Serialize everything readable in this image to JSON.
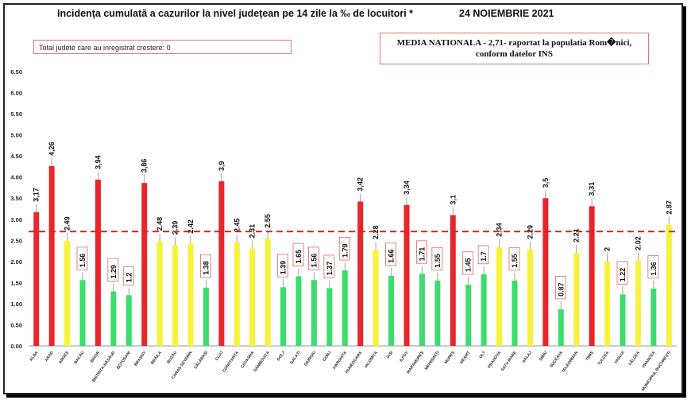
{
  "header": {
    "title": "Incidența cumulată a cazurilor la nivel județean pe 14 zile la ‰ de locuitori *",
    "date": "24 NOIEMBRIE 2021",
    "box_left": "Total judete care au inregistrat crestere: 0",
    "box_right_line1": "MEDIA NATIONALA - 2,71-  raportat la populatia Rom�nici,",
    "box_right_line2": "conform datelor INS"
  },
  "colors": {
    "red": "#e8252a",
    "yellow": "#f7f23b",
    "green": "#3ddc6e",
    "reference": "#e02020"
  },
  "chart_data": {
    "type": "bar",
    "title": "Incidența cumulată a cazurilor la nivel județean pe 14 zile la ‰ de locuitori *",
    "ylim": [
      0,
      6.5
    ],
    "yticks": [
      "0.00",
      "0.50",
      "1.00",
      "1.50",
      "2.00",
      "2.50",
      "3.00",
      "3.50",
      "4.00",
      "4.50",
      "5.00",
      "5.50",
      "6.00",
      "6.50"
    ],
    "reference_line": 2.71,
    "grid": false,
    "bars": [
      {
        "category": "ALBA",
        "value": 3.17,
        "label": "3,17",
        "color": "red",
        "boxed": false
      },
      {
        "category": "ARAD",
        "value": 4.26,
        "label": "4,26",
        "color": "red",
        "boxed": false
      },
      {
        "category": "ARGEȘ",
        "value": 2.49,
        "label": "2.49",
        "color": "yellow",
        "boxed": false
      },
      {
        "category": "BACĂU",
        "value": 1.56,
        "label": "1.56",
        "color": "green",
        "boxed": true
      },
      {
        "category": "BIHOR",
        "value": 3.94,
        "label": "3,94",
        "color": "red",
        "boxed": false
      },
      {
        "category": "BISTRIȚA-NĂSĂUD",
        "value": 1.29,
        "label": "1.29",
        "color": "green",
        "boxed": true
      },
      {
        "category": "BOTOȘANI",
        "value": 1.2,
        "label": "1.2",
        "color": "green",
        "boxed": true
      },
      {
        "category": "BRAȘOV",
        "value": 3.86,
        "label": "3,86",
        "color": "red",
        "boxed": false
      },
      {
        "category": "BRĂILA",
        "value": 2.48,
        "label": "2.48",
        "color": "yellow",
        "boxed": false
      },
      {
        "category": "BUZĂU",
        "value": 2.39,
        "label": "2.39",
        "color": "yellow",
        "boxed": false
      },
      {
        "category": "CARAȘ-SEVERIN",
        "value": 2.42,
        "label": "2.42",
        "color": "yellow",
        "boxed": false
      },
      {
        "category": "CĂLĂRAȘI",
        "value": 1.38,
        "label": "1.38",
        "color": "green",
        "boxed": true
      },
      {
        "category": "CLUJ",
        "value": 3.9,
        "label": "3,9",
        "color": "red",
        "boxed": false
      },
      {
        "category": "CONSTANȚA",
        "value": 2.45,
        "label": "2.45",
        "color": "yellow",
        "boxed": false
      },
      {
        "category": "COVASNA",
        "value": 2.31,
        "label": "2.31",
        "color": "yellow",
        "boxed": false
      },
      {
        "category": "DÂMBOVIȚA",
        "value": 2.55,
        "label": "2.55",
        "color": "yellow",
        "boxed": false
      },
      {
        "category": "DOLJ",
        "value": 1.39,
        "label": "1.39",
        "color": "green",
        "boxed": true
      },
      {
        "category": "GALAȚI",
        "value": 1.65,
        "label": "1.65",
        "color": "green",
        "boxed": true
      },
      {
        "category": "GIURGIU",
        "value": 1.56,
        "label": "1.56",
        "color": "green",
        "boxed": true
      },
      {
        "category": "GORJ",
        "value": 1.37,
        "label": "1.37",
        "color": "green",
        "boxed": true
      },
      {
        "category": "HARGHITA",
        "value": 1.79,
        "label": "1.79",
        "color": "green",
        "boxed": true
      },
      {
        "category": "HUNEDOARA",
        "value": 3.42,
        "label": "3,42",
        "color": "red",
        "boxed": false
      },
      {
        "category": "IALOMIȚA",
        "value": 2.28,
        "label": "2.28",
        "color": "yellow",
        "boxed": false
      },
      {
        "category": "IAȘI",
        "value": 1.66,
        "label": "1.66",
        "color": "green",
        "boxed": true
      },
      {
        "category": "ILFOV",
        "value": 3.34,
        "label": "3,34",
        "color": "red",
        "boxed": false
      },
      {
        "category": "MARAMUREȘ",
        "value": 1.71,
        "label": "1.71",
        "color": "green",
        "boxed": true
      },
      {
        "category": "MEHEDINȚI",
        "value": 1.55,
        "label": "1.55",
        "color": "green",
        "boxed": true
      },
      {
        "category": "MUREȘ",
        "value": 3.1,
        "label": "3,1",
        "color": "red",
        "boxed": false
      },
      {
        "category": "NEAMȚ",
        "value": 1.45,
        "label": "1.45",
        "color": "green",
        "boxed": true
      },
      {
        "category": "OLT",
        "value": 1.7,
        "label": "1.7",
        "color": "green",
        "boxed": true
      },
      {
        "category": "PRAHOVA",
        "value": 2.34,
        "label": "2.34",
        "color": "yellow",
        "boxed": false
      },
      {
        "category": "SATU MARE",
        "value": 1.55,
        "label": "1.55",
        "color": "green",
        "boxed": true
      },
      {
        "category": "SĂLAJ",
        "value": 2.29,
        "label": "2.29",
        "color": "yellow",
        "boxed": false
      },
      {
        "category": "SIBIU",
        "value": 3.5,
        "label": "3,5",
        "color": "red",
        "boxed": false
      },
      {
        "category": "SUCEAVA",
        "value": 0.87,
        "label": "0.87",
        "color": "green",
        "boxed": true
      },
      {
        "category": "TELEORMAN",
        "value": 2.21,
        "label": "2.21",
        "color": "yellow",
        "boxed": false
      },
      {
        "category": "TIMIȘ",
        "value": 3.31,
        "label": "3,31",
        "color": "red",
        "boxed": false
      },
      {
        "category": "TULCEA",
        "value": 2,
        "label": "2",
        "color": "yellow",
        "boxed": false
      },
      {
        "category": "VASLUI",
        "value": 1.22,
        "label": "1.22",
        "color": "green",
        "boxed": true
      },
      {
        "category": "VÂLCEA",
        "value": 2.02,
        "label": "2.02",
        "color": "yellow",
        "boxed": false
      },
      {
        "category": "VRANCEA",
        "value": 1.36,
        "label": "1.36",
        "color": "green",
        "boxed": true
      },
      {
        "category": "MUNICIPIUL BUCUREȘTI",
        "value": 2.87,
        "label": "2.87",
        "color": "yellow",
        "boxed": false
      }
    ]
  }
}
